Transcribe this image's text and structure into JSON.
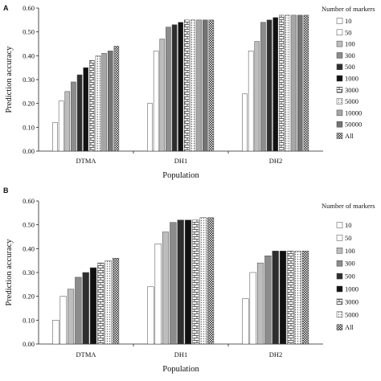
{
  "chart_data": [
    {
      "type": "bar",
      "panel_label": "A",
      "categories": [
        "DTMA",
        "DH1",
        "DH2"
      ],
      "xlabel": "Population",
      "ylabel": "Prediction accuracy",
      "ylim": [
        0,
        0.6
      ],
      "yticks": [
        "0.00",
        "0.10",
        "0.20",
        "0.30",
        "0.40",
        "0.50",
        "0.60"
      ],
      "legend_title": "Number of markers",
      "legend_position": "right",
      "series": [
        {
          "name": "10",
          "values": [
            0.12,
            0.2,
            0.24
          ],
          "color": "#ffffff",
          "pattern": "none"
        },
        {
          "name": "50",
          "values": [
            0.21,
            0.42,
            0.42
          ],
          "color": "#ffffff",
          "pattern": "none"
        },
        {
          "name": "100",
          "values": [
            0.25,
            0.47,
            0.46
          ],
          "color": "#bdbdbd",
          "pattern": "none"
        },
        {
          "name": "300",
          "values": [
            0.29,
            0.52,
            0.54
          ],
          "color": "#8c8c8c",
          "pattern": "none"
        },
        {
          "name": "500",
          "values": [
            0.32,
            0.53,
            0.55
          ],
          "color": "#2e2e2e",
          "pattern": "none"
        },
        {
          "name": "1000",
          "values": [
            0.35,
            0.54,
            0.56
          ],
          "color": "#111111",
          "pattern": "none"
        },
        {
          "name": "3000",
          "values": [
            0.38,
            0.55,
            0.57
          ],
          "color": "#ffffff",
          "pattern": "brick"
        },
        {
          "name": "5000",
          "values": [
            0.4,
            0.55,
            0.57
          ],
          "color": "#ffffff",
          "pattern": "dots"
        },
        {
          "name": "10000",
          "values": [
            0.41,
            0.55,
            0.57
          ],
          "color": "#a6a6a6",
          "pattern": "none"
        },
        {
          "name": "50000",
          "values": [
            0.42,
            0.55,
            0.57
          ],
          "color": "#737373",
          "pattern": "none"
        },
        {
          "name": "All",
          "values": [
            0.44,
            0.55,
            0.57
          ],
          "color": "#333333",
          "pattern": "checker"
        }
      ]
    },
    {
      "type": "bar",
      "panel_label": "B",
      "categories": [
        "DTMA",
        "DH1",
        "DH2"
      ],
      "xlabel": "Population",
      "ylabel": "Prediction accuracy",
      "ylim": [
        0,
        0.6
      ],
      "yticks": [
        "0.00",
        "0.10",
        "0.20",
        "0.30",
        "0.40",
        "0.50",
        "0.60"
      ],
      "legend_title": "Number of markers",
      "legend_position": "right",
      "series": [
        {
          "name": "10",
          "values": [
            0.1,
            0.24,
            0.19
          ],
          "color": "#ffffff",
          "pattern": "none"
        },
        {
          "name": "50",
          "values": [
            0.2,
            0.42,
            0.3
          ],
          "color": "#ffffff",
          "pattern": "none"
        },
        {
          "name": "100",
          "values": [
            0.23,
            0.47,
            0.34
          ],
          "color": "#bdbdbd",
          "pattern": "none"
        },
        {
          "name": "300",
          "values": [
            0.28,
            0.51,
            0.37
          ],
          "color": "#8c8c8c",
          "pattern": "none"
        },
        {
          "name": "500",
          "values": [
            0.3,
            0.52,
            0.39
          ],
          "color": "#2e2e2e",
          "pattern": "none"
        },
        {
          "name": "1000",
          "values": [
            0.32,
            0.52,
            0.39
          ],
          "color": "#111111",
          "pattern": "none"
        },
        {
          "name": "3000",
          "values": [
            0.34,
            0.52,
            0.39
          ],
          "color": "#ffffff",
          "pattern": "brick"
        },
        {
          "name": "5000",
          "values": [
            0.35,
            0.53,
            0.39
          ],
          "color": "#ffffff",
          "pattern": "dots"
        },
        {
          "name": "All",
          "values": [
            0.36,
            0.53,
            0.39
          ],
          "color": "#333333",
          "pattern": "checker"
        }
      ]
    }
  ]
}
